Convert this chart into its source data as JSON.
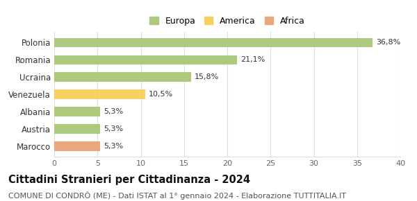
{
  "categories": [
    "Polonia",
    "Romania",
    "Ucraina",
    "Venezuela",
    "Albania",
    "Austria",
    "Marocco"
  ],
  "values": [
    36.8,
    21.1,
    15.8,
    10.5,
    5.3,
    5.3,
    5.3
  ],
  "labels": [
    "36,8%",
    "21,1%",
    "15,8%",
    "10,5%",
    "5,3%",
    "5,3%",
    "5,3%"
  ],
  "colors": [
    "#adc97e",
    "#adc97e",
    "#adc97e",
    "#f7d060",
    "#adc97e",
    "#adc97e",
    "#e8a87c"
  ],
  "legend_labels": [
    "Europa",
    "America",
    "Africa"
  ],
  "legend_colors": [
    "#adc97e",
    "#f7d060",
    "#e8a87c"
  ],
  "xlim": [
    0,
    40
  ],
  "xticks": [
    0,
    5,
    10,
    15,
    20,
    25,
    30,
    35,
    40
  ],
  "title": "Cittadini Stranieri per Cittadinanza - 2024",
  "subtitle": "COMUNE DI CONDRÒ (ME) - Dati ISTAT al 1° gennaio 2024 - Elaborazione TUTTITALIA.IT",
  "title_fontsize": 10.5,
  "subtitle_fontsize": 8,
  "bg_color": "#ffffff",
  "grid_color": "#dddddd"
}
